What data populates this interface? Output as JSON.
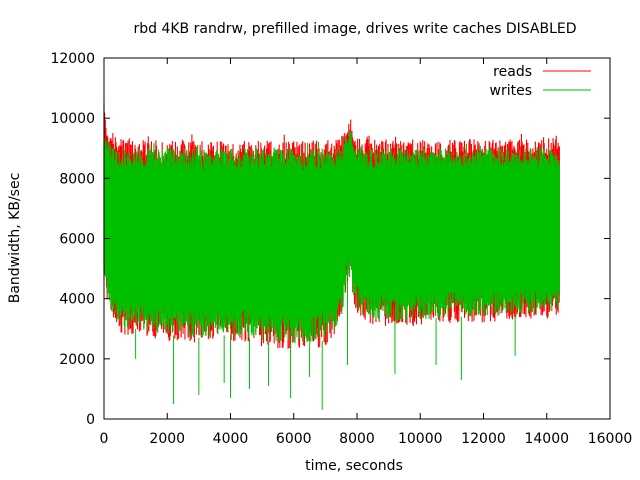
{
  "chart_data": {
    "type": "line",
    "title": "rbd 4KB randrw, prefilled image, drives write caches DISABLED",
    "xlabel": "time, seconds",
    "ylabel": "Bandwidth, KB/sec",
    "xlim": [
      0,
      16000
    ],
    "ylim": [
      0,
      12000
    ],
    "xticks": [
      "0",
      "2000",
      "4000",
      "6000",
      "8000",
      "10000",
      "12000",
      "14000",
      "16000"
    ],
    "yticks": [
      "0",
      "2000",
      "4000",
      "6000",
      "8000",
      "10000",
      "12000"
    ],
    "grid": false,
    "legend_position": "top-right",
    "x_end": 14400,
    "series": [
      {
        "name": "reads",
        "color": "#ff0000",
        "upper": [
          [
            0,
            10500
          ],
          [
            50,
            10100
          ],
          [
            200,
            9600
          ],
          [
            500,
            9400
          ],
          [
            1000,
            9300
          ],
          [
            2000,
            9250
          ],
          [
            3000,
            9250
          ],
          [
            4000,
            9250
          ],
          [
            5000,
            9250
          ],
          [
            6000,
            9250
          ],
          [
            7000,
            9300
          ],
          [
            7500,
            9400
          ],
          [
            7700,
            9900
          ],
          [
            7800,
            10200
          ],
          [
            7900,
            9500
          ],
          [
            8200,
            9300
          ],
          [
            9000,
            9300
          ],
          [
            10000,
            9300
          ],
          [
            11000,
            9300
          ],
          [
            12000,
            9300
          ],
          [
            13000,
            9300
          ],
          [
            14000,
            9300
          ],
          [
            14400,
            9400
          ]
        ],
        "lower": [
          [
            0,
            4400
          ],
          [
            50,
            4200
          ],
          [
            200,
            3400
          ],
          [
            500,
            2800
          ],
          [
            1000,
            2800
          ],
          [
            2000,
            2600
          ],
          [
            3000,
            2500
          ],
          [
            4000,
            2600
          ],
          [
            5000,
            2400
          ],
          [
            6000,
            2300
          ],
          [
            7000,
            2400
          ],
          [
            7500,
            3100
          ],
          [
            7700,
            4400
          ],
          [
            7800,
            4700
          ],
          [
            7900,
            3600
          ],
          [
            8200,
            3200
          ],
          [
            9000,
            3000
          ],
          [
            10000,
            3100
          ],
          [
            11000,
            3200
          ],
          [
            12000,
            3200
          ],
          [
            13000,
            3300
          ],
          [
            14000,
            3300
          ],
          [
            14400,
            3300
          ]
        ]
      },
      {
        "name": "writes",
        "color": "#00c000",
        "upper": [
          [
            0,
            9500
          ],
          [
            50,
            9400
          ],
          [
            200,
            9100
          ],
          [
            500,
            9000
          ],
          [
            1000,
            9000
          ],
          [
            2000,
            9000
          ],
          [
            3000,
            9000
          ],
          [
            4000,
            9000
          ],
          [
            5000,
            9000
          ],
          [
            6000,
            9000
          ],
          [
            7000,
            9000
          ],
          [
            7500,
            9000
          ],
          [
            7700,
            9600
          ],
          [
            7800,
            9800
          ],
          [
            7900,
            9200
          ],
          [
            8200,
            9000
          ],
          [
            9000,
            9000
          ],
          [
            10000,
            9000
          ],
          [
            11000,
            9000
          ],
          [
            12000,
            9000
          ],
          [
            13000,
            9000
          ],
          [
            14000,
            9000
          ],
          [
            14400,
            9000
          ]
        ],
        "lower": [
          [
            0,
            4700
          ],
          [
            50,
            4400
          ],
          [
            200,
            3600
          ],
          [
            500,
            3000
          ],
          [
            1000,
            3000
          ],
          [
            2000,
            2800
          ],
          [
            3000,
            2700
          ],
          [
            4000,
            2800
          ],
          [
            5000,
            2600
          ],
          [
            6000,
            2500
          ],
          [
            7000,
            2600
          ],
          [
            7500,
            3300
          ],
          [
            7700,
            4600
          ],
          [
            7800,
            4800
          ],
          [
            7900,
            3800
          ],
          [
            8200,
            3400
          ],
          [
            9000,
            3200
          ],
          [
            10000,
            3300
          ],
          [
            11000,
            3400
          ],
          [
            12000,
            3400
          ],
          [
            13000,
            3500
          ],
          [
            14000,
            3500
          ],
          [
            14400,
            3500
          ]
        ],
        "dips": [
          [
            1000,
            2000
          ],
          [
            2200,
            500
          ],
          [
            3000,
            800
          ],
          [
            3800,
            1200
          ],
          [
            4000,
            700
          ],
          [
            4600,
            1000
          ],
          [
            5200,
            1100
          ],
          [
            5900,
            700
          ],
          [
            6500,
            1400
          ],
          [
            6900,
            300
          ],
          [
            7700,
            1800
          ],
          [
            9200,
            1500
          ],
          [
            10500,
            1800
          ],
          [
            11300,
            1300
          ],
          [
            13000,
            2100
          ]
        ],
        "spikes": [
          [
            7760,
            6400
          ]
        ]
      }
    ]
  }
}
